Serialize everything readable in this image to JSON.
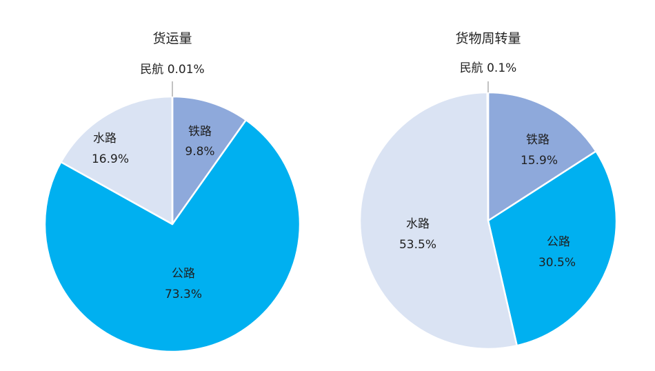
{
  "chart_data": [
    {
      "type": "pie",
      "title": "货运量",
      "colors": {
        "铁路": "#8ea9db",
        "公路": "#00b0f0",
        "水路": "#dae3f3",
        "民航": "#ffffff"
      },
      "slices": [
        {
          "name": "铁路",
          "value": 9.8,
          "label": "9.8%"
        },
        {
          "name": "公路",
          "value": 73.3,
          "label": "73.3%"
        },
        {
          "name": "水路",
          "value": 16.9,
          "label": "16.9%"
        },
        {
          "name": "民航",
          "value": 0.01,
          "label": "0.01%"
        }
      ]
    },
    {
      "type": "pie",
      "title": "货物周转量",
      "colors": {
        "铁路": "#8ea9db",
        "公路": "#00b0f0",
        "水路": "#dae3f3",
        "民航": "#ffffff"
      },
      "slices": [
        {
          "name": "铁路",
          "value": 15.9,
          "label": "15.9%"
        },
        {
          "name": "公路",
          "value": 30.5,
          "label": "30.5%"
        },
        {
          "name": "水路",
          "value": 53.5,
          "label": "53.5%"
        },
        {
          "name": "民航",
          "value": 0.1,
          "label": "0.1%"
        }
      ]
    }
  ]
}
